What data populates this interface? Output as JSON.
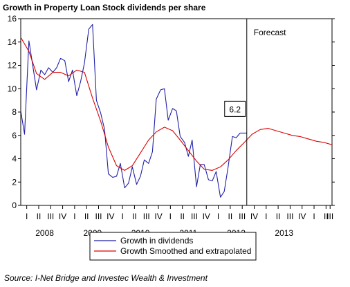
{
  "chart_data": {
    "type": "line",
    "title": "Growth in Property Loan Stock dividends per share",
    "source": "Source: I-Net Bridge and Investec Wealth & Investment",
    "ylim": [
      0,
      16
    ],
    "yticks": [
      0,
      2,
      4,
      6,
      8,
      10,
      12,
      14,
      16
    ],
    "x_start": 2007.5,
    "x_end": 2014.0,
    "years": [
      {
        "label": "2008",
        "center": 2008.0
      },
      {
        "label": "2009",
        "center": 2009.0
      },
      {
        "label": "2010",
        "center": 2010.0
      },
      {
        "label": "2011",
        "center": 2011.0
      },
      {
        "label": "2012",
        "center": 2012.0
      },
      {
        "label": "2013",
        "center": 2013.0
      }
    ],
    "quarters": [
      "I",
      "II",
      "III",
      "IV"
    ],
    "quarter_labels": [
      {
        "label": "I",
        "x": 2007.625
      },
      {
        "label": "II",
        "x": 2007.875
      },
      {
        "label": "III",
        "x": 2008.125
      },
      {
        "label": "IV",
        "x": 2008.375
      },
      {
        "label": "I",
        "x": 2008.625
      },
      {
        "label": "II",
        "x": 2008.875
      },
      {
        "label": "III",
        "x": 2009.125
      },
      {
        "label": "IV",
        "x": 2009.375
      },
      {
        "label": "I",
        "x": 2009.625
      },
      {
        "label": "II",
        "x": 2009.875
      },
      {
        "label": "III",
        "x": 2010.125
      },
      {
        "label": "IV",
        "x": 2010.375
      },
      {
        "label": "I",
        "x": 2010.625
      },
      {
        "label": "II",
        "x": 2010.875
      },
      {
        "label": "III",
        "x": 2011.125
      },
      {
        "label": "IV",
        "x": 2011.375
      },
      {
        "label": "I",
        "x": 2011.625
      },
      {
        "label": "II",
        "x": 2011.875
      },
      {
        "label": "III",
        "x": 2012.125
      },
      {
        "label": "IV",
        "x": 2012.375
      },
      {
        "label": "I",
        "x": 2012.625
      },
      {
        "label": "II",
        "x": 2012.875
      },
      {
        "label": "III",
        "x": 2013.125
      },
      {
        "label": "IV",
        "x": 2013.375
      },
      {
        "label": "I",
        "x": 2013.625
      },
      {
        "label": "II",
        "x": 2013.875
      },
      {
        "label": "III",
        "x": 2013.96
      }
    ],
    "forecast_line_x": 2012.22,
    "forecast_label": "Forecast",
    "annotation": {
      "text": "6.2",
      "x": 2012.22,
      "y": 6.2
    },
    "legend_placement": "bottom-center",
    "series": [
      {
        "name": "Growth in dividends",
        "color": "#1f1fa8",
        "x": [
          2007.5,
          2007.58,
          2007.67,
          2007.75,
          2007.83,
          2007.92,
          2008.0,
          2008.08,
          2008.17,
          2008.25,
          2008.33,
          2008.42,
          2008.5,
          2008.58,
          2008.67,
          2008.75,
          2008.83,
          2008.92,
          2009.0,
          2009.08,
          2009.17,
          2009.25,
          2009.33,
          2009.42,
          2009.5,
          2009.58,
          2009.67,
          2009.75,
          2009.83,
          2009.92,
          2010.0,
          2010.08,
          2010.17,
          2010.25,
          2010.33,
          2010.42,
          2010.5,
          2010.58,
          2010.67,
          2010.75,
          2010.83,
          2010.92,
          2011.0,
          2011.08,
          2011.17,
          2011.25,
          2011.33,
          2011.42,
          2011.5,
          2011.58,
          2011.67,
          2011.75,
          2011.83,
          2011.92,
          2012.0,
          2012.08,
          2012.17,
          2012.22
        ],
        "y": [
          8.1,
          6.1,
          14.1,
          12.0,
          9.9,
          11.6,
          11.2,
          11.8,
          11.4,
          11.8,
          12.6,
          12.4,
          10.6,
          11.6,
          9.4,
          10.6,
          12.2,
          15.1,
          15.5,
          9.0,
          7.9,
          6.5,
          2.7,
          2.4,
          2.5,
          3.6,
          1.5,
          1.9,
          3.3,
          1.8,
          2.5,
          3.9,
          3.6,
          4.6,
          9.1,
          9.9,
          10.0,
          7.3,
          8.3,
          8.1,
          5.9,
          5.4,
          4.2,
          5.6,
          1.6,
          3.5,
          3.5,
          2.2,
          2.1,
          2.9,
          0.7,
          1.2,
          3.3,
          5.9,
          5.8,
          6.2,
          6.2,
          6.2
        ]
      },
      {
        "name": "Growth Smoothed and extrapolated",
        "color": "#dd0000",
        "x": [
          2007.5,
          2007.67,
          2007.83,
          2008.0,
          2008.17,
          2008.33,
          2008.5,
          2008.67,
          2008.83,
          2009.0,
          2009.17,
          2009.33,
          2009.5,
          2009.67,
          2009.83,
          2010.0,
          2010.17,
          2010.33,
          2010.5,
          2010.67,
          2010.83,
          2011.0,
          2011.17,
          2011.33,
          2011.5,
          2011.67,
          2011.83,
          2012.0,
          2012.17,
          2012.33,
          2012.5,
          2012.67,
          2012.83,
          2013.0,
          2013.17,
          2013.33,
          2013.5,
          2013.67,
          2013.83,
          2014.0
        ],
        "y": [
          14.4,
          13.2,
          11.3,
          10.8,
          11.4,
          11.4,
          11.1,
          11.6,
          11.4,
          9.2,
          7.2,
          5.0,
          3.4,
          3.0,
          3.4,
          4.5,
          5.6,
          6.3,
          6.7,
          6.4,
          5.6,
          4.7,
          3.8,
          3.1,
          3.0,
          3.3,
          3.9,
          4.7,
          5.4,
          6.1,
          6.5,
          6.6,
          6.4,
          6.2,
          6.0,
          5.9,
          5.7,
          5.5,
          5.4,
          5.2
        ]
      }
    ]
  }
}
